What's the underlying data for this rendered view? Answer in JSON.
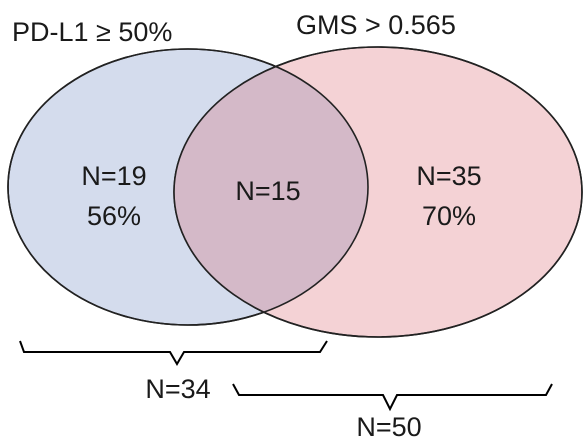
{
  "sets": [
    {
      "title": "PD-L1 ≥ 50%",
      "count": "N=19",
      "percent": "56%",
      "fill": "#d4dced",
      "stroke": "#222222"
    },
    {
      "title": "GMS > 0.565",
      "count": "N=35",
      "percent": "70%",
      "fill": "#f4d2d5",
      "stroke": "#222222"
    }
  ],
  "overlap": {
    "count": "N=15",
    "fill": "#d4b9c8"
  },
  "totals": {
    "left": "N=34",
    "right": "N=50"
  }
}
